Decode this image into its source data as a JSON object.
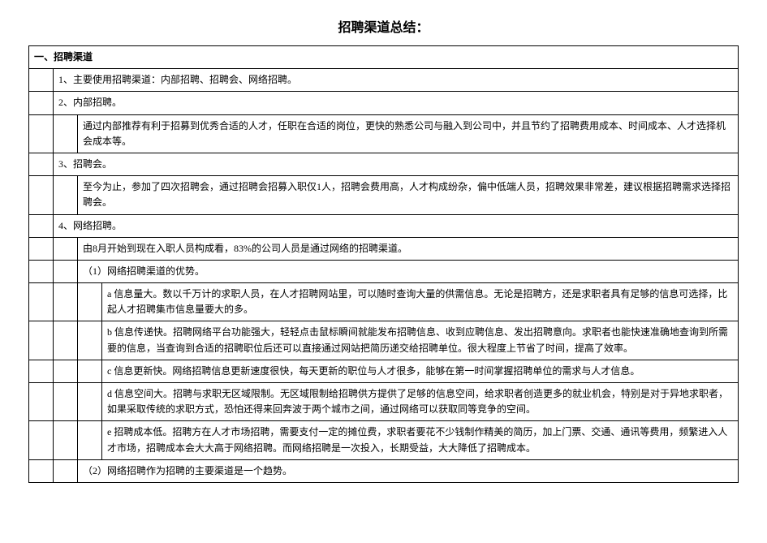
{
  "title": "招聘渠道总结：",
  "section_header": "一、招聘渠道",
  "rows": {
    "r1": "1、主要使用招聘渠道：内部招聘、招聘会、网络招聘。",
    "r2": "2、内部招聘。",
    "r2_detail": "通过内部推荐有利于招募到优秀合适的人才，任职在合适的岗位，更快的熟悉公司与融入到公司中，并且节约了招聘费用成本、时间成本、人才选择机会成本等。",
    "r3": "3、招聘会。",
    "r3_detail": "至今为止，参加了四次招聘会，通过招聘会招募入职仅1人，招聘会费用高，人才构成纷杂，偏中低端人员，招聘效果非常差，建议根据招聘需求选择招聘会。",
    "r4": "4、网络招聘。",
    "r4_detail1": "由8月开始到现在入职人员构成看，83%的公司人员是通过网络的招聘渠道。",
    "r4_sub1": "（1）网络招聘渠道的优势。",
    "r4_sub1_a": "a 信息量大。数以千万计的求职人员，在人才招聘网站里，可以随时查询大量的供需信息。无论是招聘方，还是求职者具有足够的信息可选择，比起人才招聘集市信息量要大的多。",
    "r4_sub1_b": "b 信息传递快。招聘网络平台功能强大，轻轻点击鼠标瞬间就能发布招聘信息、收到应聘信息、发出招聘意向。求职者也能快速准确地查询到所需要的信息，当查询到合适的招聘职位后还可以直接通过网站把简历递交给招聘单位。很大程度上节省了时间，提高了效率。",
    "r4_sub1_c": "c 信息更新快。网络招聘信息更新速度很快，每天更新的职位与人才很多，能够在第一时间掌握招聘单位的需求与人才信息。",
    "r4_sub1_d": "d 信息空间大。招聘与求职无区域限制。无区域限制给招聘供方提供了足够的信息空间，给求职者创造更多的就业机会，特别是对于异地求职者，如果采取传统的求职方式，恐怕还得来回奔波于两个城市之间，通过网络可以获取同等竞争的空间。",
    "r4_sub1_e": "e 招聘成本低。招聘方在人才市场招聘，需要支付一定的摊位费，求职者要花不少钱制作精美的简历，加上门票、交通、通讯等费用，频繁进入人才市场，招聘成本会大大高于网络招聘。而网络招聘是一次投入，长期受益，大大降低了招聘成本。",
    "r4_sub2": "（2）网络招聘作为招聘的主要渠道是一个趋势。"
  },
  "colors": {
    "border": "#000000",
    "text": "#000000",
    "background": "#ffffff"
  },
  "typography": {
    "title_fontsize": 16,
    "body_fontsize": 12,
    "font_family": "SimSun"
  }
}
